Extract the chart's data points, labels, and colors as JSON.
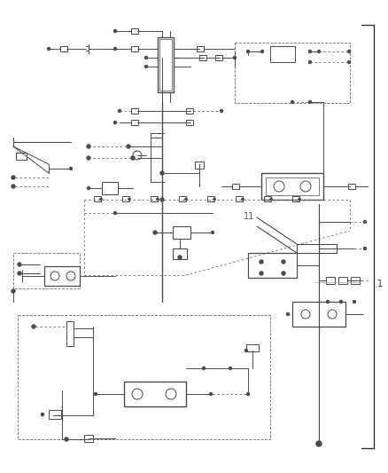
{
  "bg": "#ffffff",
  "lc": "#4a4a4a",
  "dc": "#6a6a6a",
  "lw": 0.7,
  "dlw": 0.6,
  "fig_w": 4.38,
  "fig_h": 5.33,
  "dpi": 100
}
